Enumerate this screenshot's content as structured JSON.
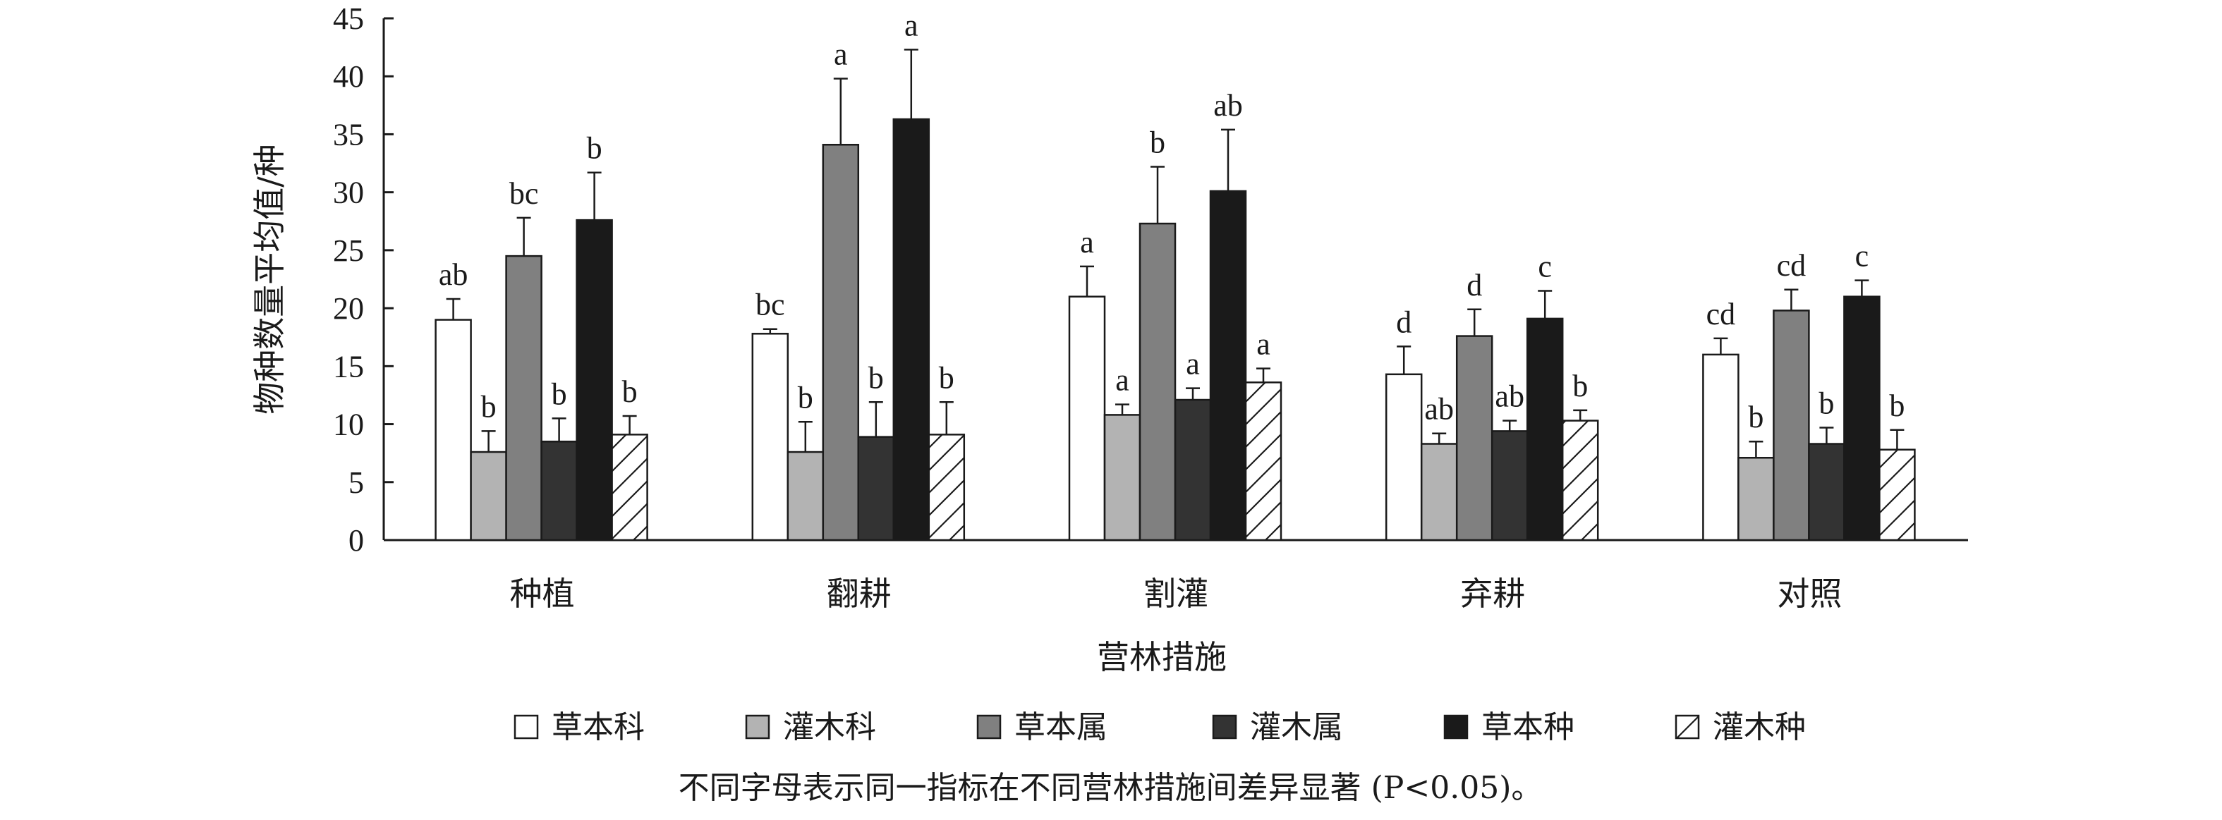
{
  "chart_data": {
    "type": "bar",
    "ylabel": "物种数量平均值/种",
    "xlabel": "营林措施",
    "ylim": [
      0,
      45
    ],
    "yticks": [
      0,
      5,
      10,
      15,
      20,
      25,
      30,
      35,
      40,
      45
    ],
    "categories": [
      "种植",
      "翻耕",
      "割灌",
      "弃耕",
      "对照"
    ],
    "legend_position": "bottom",
    "grid": false,
    "series": [
      {
        "name": "草本科",
        "fill": "#ffffff",
        "pattern": "none",
        "values": [
          19.0,
          17.8,
          21.0,
          14.3,
          16.0
        ],
        "errors": [
          1.8,
          0.4,
          2.6,
          2.4,
          1.4
        ],
        "labels": [
          "ab",
          "bc",
          "a",
          "d",
          "cd"
        ]
      },
      {
        "name": "灌木科",
        "fill": "#b3b3b3",
        "pattern": "none",
        "values": [
          7.6,
          7.6,
          10.8,
          8.3,
          7.1
        ],
        "errors": [
          1.8,
          2.6,
          0.9,
          0.9,
          1.4
        ],
        "labels": [
          "b",
          "b",
          "a",
          "ab",
          "b"
        ]
      },
      {
        "name": "草本属",
        "fill": "#808080",
        "pattern": "none",
        "values": [
          24.5,
          34.1,
          27.3,
          17.6,
          19.8
        ],
        "errors": [
          3.3,
          5.7,
          4.9,
          2.3,
          1.8
        ],
        "labels": [
          "bc",
          "a",
          "b",
          "d",
          "cd"
        ]
      },
      {
        "name": "灌木属",
        "fill": "#333333",
        "pattern": "none",
        "values": [
          8.5,
          8.9,
          12.1,
          9.4,
          8.3
        ],
        "errors": [
          2.0,
          3.0,
          1.0,
          0.9,
          1.4
        ],
        "labels": [
          "b",
          "b",
          "a",
          "ab",
          "b"
        ]
      },
      {
        "name": "草本种",
        "fill": "#1a1a1a",
        "pattern": "none",
        "values": [
          27.6,
          36.3,
          30.1,
          19.1,
          21.0
        ],
        "errors": [
          4.1,
          6.0,
          5.3,
          2.4,
          1.4
        ],
        "labels": [
          "b",
          "a",
          "ab",
          "c",
          "c"
        ]
      },
      {
        "name": "灌木种",
        "fill": "#ffffff",
        "pattern": "hatch",
        "values": [
          9.1,
          9.1,
          13.6,
          10.3,
          7.8
        ],
        "errors": [
          1.6,
          2.8,
          1.2,
          0.9,
          1.7
        ],
        "labels": [
          "b",
          "b",
          "a",
          "b",
          "b"
        ]
      }
    ],
    "note": "不同字母表示同一指标在不同营林措施间差异显著 (P<0.05)。"
  }
}
